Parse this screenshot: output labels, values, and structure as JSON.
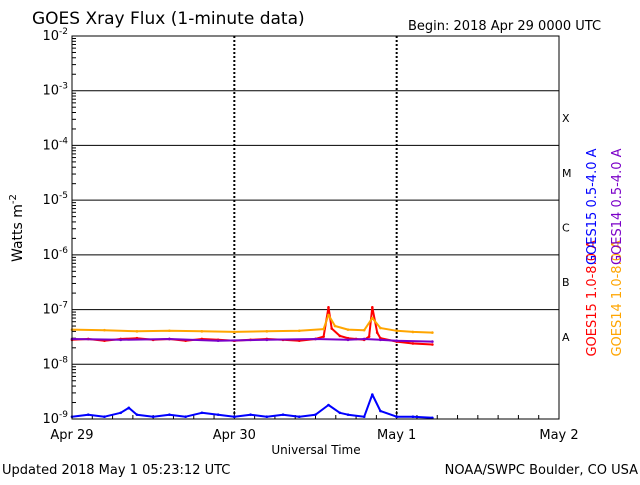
{
  "chart_data": {
    "type": "line",
    "title": "GOES Xray Flux (1-minute data)",
    "begin_label": "Begin:  2018 Apr 29 0000 UTC",
    "xlabel": "Universal Time",
    "ylabel_main": "Watts m",
    "ylabel_exp": "-2",
    "yscale": "log",
    "ylim": [
      1e-09,
      0.01
    ],
    "xlim_days": [
      0,
      3
    ],
    "y_ticks": [
      {
        "value": 0.01,
        "base": "10",
        "exp": "-2"
      },
      {
        "value": 0.001,
        "base": "10",
        "exp": "-3"
      },
      {
        "value": 0.0001,
        "base": "10",
        "exp": "-4"
      },
      {
        "value": 1e-05,
        "base": "10",
        "exp": "-5"
      },
      {
        "value": 1e-06,
        "base": "10",
        "exp": "-6"
      },
      {
        "value": 1e-07,
        "base": "10",
        "exp": "-7"
      },
      {
        "value": 1e-08,
        "base": "10",
        "exp": "-8"
      },
      {
        "value": 1e-09,
        "base": "10",
        "exp": "-9"
      }
    ],
    "x_ticks": [
      {
        "day": 0,
        "label": "Apr 29"
      },
      {
        "day": 1,
        "label": "Apr 30"
      },
      {
        "day": 2,
        "label": "May 1"
      },
      {
        "day": 3,
        "label": "May 2"
      }
    ],
    "flare_classes": [
      {
        "label": "A",
        "value": 3.16e-08
      },
      {
        "label": "B",
        "value": 3.16e-07
      },
      {
        "label": "C",
        "value": 3.16e-06
      },
      {
        "label": "M",
        "value": 3.16e-05
      },
      {
        "label": "X",
        "value": 0.000316
      }
    ],
    "grid": true,
    "legend_placement": "right",
    "series": [
      {
        "name": "GOES15 1.0-8.0 A",
        "color": "#ff0000",
        "x": [
          0,
          0.1,
          0.2,
          0.3,
          0.4,
          0.5,
          0.6,
          0.7,
          0.8,
          0.9,
          1.0,
          1.1,
          1.2,
          1.3,
          1.4,
          1.5,
          1.55,
          1.58,
          1.6,
          1.65,
          1.7,
          1.75,
          1.8,
          1.83,
          1.85,
          1.88,
          1.9,
          2.0,
          2.1,
          2.22
        ],
        "y": [
          2.8e-08,
          2.9e-08,
          2.7e-08,
          2.9e-08,
          3e-08,
          2.8e-08,
          2.9e-08,
          2.7e-08,
          2.9e-08,
          2.8e-08,
          2.7e-08,
          2.8e-08,
          2.9e-08,
          2.8e-08,
          2.7e-08,
          2.9e-08,
          3.2e-08,
          1.1e-07,
          4.5e-08,
          3.3e-08,
          3e-08,
          2.9e-08,
          2.8e-08,
          3.2e-08,
          1.1e-07,
          3.8e-08,
          3e-08,
          2.6e-08,
          2.4e-08,
          2.3e-08
        ]
      },
      {
        "name": "GOES14 1.0-8.0 A",
        "color": "#ffa500",
        "x": [
          0,
          0.2,
          0.4,
          0.6,
          0.8,
          1.0,
          1.2,
          1.4,
          1.55,
          1.58,
          1.62,
          1.7,
          1.8,
          1.85,
          1.9,
          2.0,
          2.1,
          2.22
        ],
        "y": [
          4.3e-08,
          4.2e-08,
          4e-08,
          4.1e-08,
          4e-08,
          3.9e-08,
          4e-08,
          4.1e-08,
          4.4e-08,
          8e-08,
          5e-08,
          4.3e-08,
          4.2e-08,
          7e-08,
          4.6e-08,
          4.1e-08,
          3.9e-08,
          3.8e-08
        ]
      },
      {
        "name": "GOES15 0.5-4.0 A",
        "color": "#0000ff",
        "x": [
          0,
          0.1,
          0.2,
          0.3,
          0.35,
          0.4,
          0.5,
          0.6,
          0.7,
          0.8,
          0.9,
          1.0,
          1.1,
          1.2,
          1.3,
          1.4,
          1.5,
          1.58,
          1.65,
          1.7,
          1.8,
          1.85,
          1.9,
          2.0,
          2.1,
          2.22
        ],
        "y": [
          1.1e-09,
          1.2e-09,
          1.1e-09,
          1.3e-09,
          1.6e-09,
          1.2e-09,
          1.1e-09,
          1.2e-09,
          1.1e-09,
          1.3e-09,
          1.2e-09,
          1.1e-09,
          1.2e-09,
          1.1e-09,
          1.2e-09,
          1.1e-09,
          1.2e-09,
          1.8e-09,
          1.3e-09,
          1.2e-09,
          1.1e-09,
          2.8e-09,
          1.4e-09,
          1.1e-09,
          1.1e-09,
          1.05e-09
        ]
      },
      {
        "name": "GOES14 0.5-4.0 A",
        "color": "#7b00c8",
        "x": [
          0,
          0.3,
          0.6,
          0.9,
          1.2,
          1.5,
          1.7,
          1.8,
          1.9,
          2.0,
          2.22
        ],
        "y": [
          2.9e-08,
          2.8e-08,
          2.9e-08,
          2.7e-08,
          2.8e-08,
          2.9e-08,
          2.8e-08,
          2.9e-08,
          2.8e-08,
          2.7e-08,
          2.6e-08
        ]
      }
    ]
  },
  "footer": {
    "updated": "Updated 2018 May  1 05:23:12 UTC",
    "credit": "NOAA/SWPC Boulder, CO USA"
  }
}
